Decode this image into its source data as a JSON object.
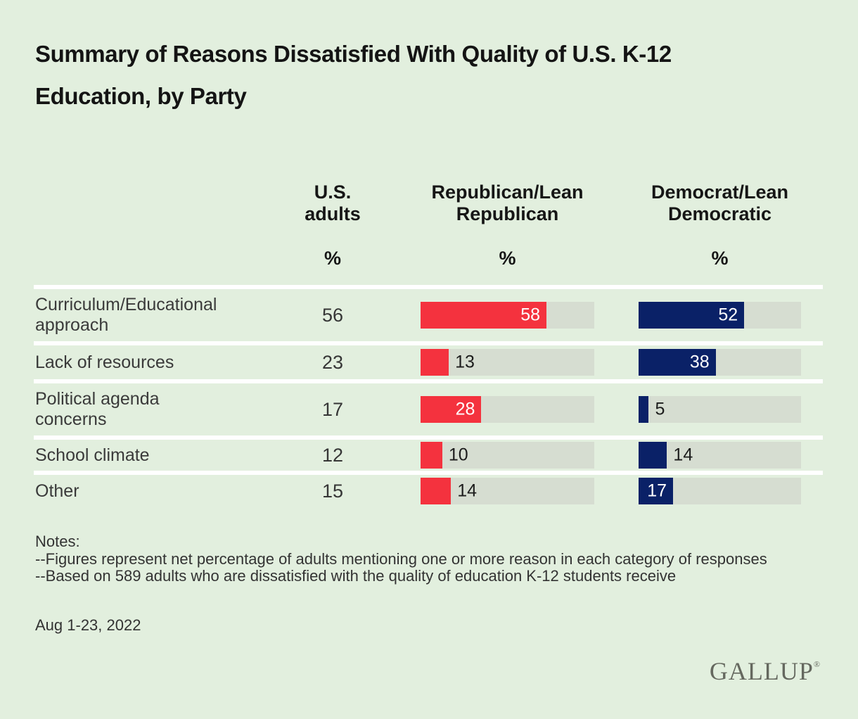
{
  "page": {
    "background": "#e2efde",
    "track_color": "#d6ddd1"
  },
  "title": {
    "line1": "Summary of Reasons Dissatisfied With Quality of U.S. K-12",
    "line2": "Education, by Party"
  },
  "columns": [
    {
      "line1": "U.S.",
      "line2": "adults",
      "percent": "%"
    },
    {
      "line1": "Republican/Lean",
      "line2": "Republican",
      "percent": "%"
    },
    {
      "line1": "Democrat/Lean",
      "line2": "Democratic",
      "percent": "%"
    }
  ],
  "rows": [
    {
      "label_line1": "Curriculum/Educational",
      "label_line2": "approach"
    },
    {
      "label_line1": "Lack of resources",
      "label_line2": ""
    },
    {
      "label_line1": "Political agenda",
      "label_line2": "concerns"
    },
    {
      "label_line1": "School climate",
      "label_line2": ""
    },
    {
      "label_line1": "Other",
      "label_line2": ""
    }
  ],
  "chart_data": {
    "type": "bar",
    "orientation": "horizontal",
    "title": "Summary of Reasons Dissatisfied With Quality of U.S. K-12 Education, by Party",
    "categories": [
      "Curriculum/Educational approach",
      "Lack of resources",
      "Political agenda concerns",
      "School climate",
      "Other"
    ],
    "series": [
      {
        "name": "U.S. adults",
        "render": "text-only",
        "values": [
          56,
          23,
          17,
          12,
          15
        ]
      },
      {
        "name": "Republican/Lean Republican",
        "color": "#f4323e",
        "values": [
          58,
          13,
          28,
          10,
          14
        ],
        "label_inside": [
          true,
          false,
          true,
          false,
          false
        ]
      },
      {
        "name": "Democrat/Lean Democratic",
        "color": "#0a2167",
        "values": [
          52,
          38,
          5,
          14,
          17
        ],
        "label_inside": [
          true,
          true,
          false,
          false,
          true
        ]
      }
    ],
    "unit": "%",
    "scale_max": 80,
    "grid": false,
    "legend_position": "column-headers"
  },
  "notes": {
    "heading": "Notes:",
    "items": [
      "--Figures represent net percentage of adults mentioning one or more reason in each category of responses",
      "--Based on 589 adults who are dissatisfied with the quality of education K-12 students receive"
    ],
    "date": "Aug 1-23, 2022"
  },
  "logo": {
    "text": "GALLUP",
    "registered": "®"
  }
}
